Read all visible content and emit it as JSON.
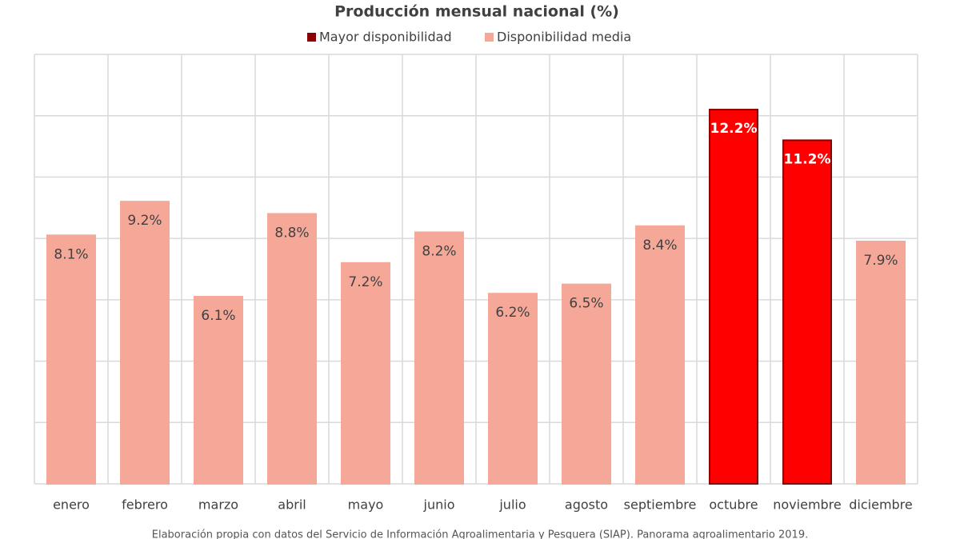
{
  "chart_data": {
    "type": "bar",
    "title": "Producción mensual nacional (%)",
    "categories": [
      "enero",
      "febrero",
      "marzo",
      "abril",
      "mayo",
      "junio",
      "julio",
      "agosto",
      "septiembre",
      "octubre",
      "noviembre",
      "diciembre"
    ],
    "series": [
      {
        "name": "Mayor disponibilidad",
        "color": "#ff0000",
        "edgecolor": "#8b0000",
        "values": [
          null,
          null,
          null,
          null,
          null,
          null,
          null,
          null,
          null,
          12.2,
          11.2,
          null
        ],
        "value_labels": [
          null,
          null,
          null,
          null,
          null,
          null,
          null,
          null,
          null,
          "12.2%",
          "11.2%",
          null
        ]
      },
      {
        "name": "Disponibilidad media",
        "color": "#f6a898",
        "edgecolor": "#f6a898",
        "values": [
          8.1,
          9.2,
          6.1,
          8.8,
          7.2,
          8.2,
          6.2,
          6.5,
          8.4,
          null,
          null,
          7.9
        ],
        "value_labels": [
          "8.1%",
          "9.2%",
          "6.1%",
          "8.8%",
          "7.2%",
          "8.2%",
          "6.2%",
          "6.5%",
          "8.4%",
          null,
          null,
          "7.9%"
        ]
      }
    ],
    "ylim": [
      0,
      14
    ],
    "yticks": [
      0,
      2,
      4,
      6,
      8,
      10,
      12,
      14
    ],
    "grid": true,
    "legend": "top",
    "source": "Elaboración propia con datos del Servicio de Información Agroalimentaria y Pesquera (SIAP). Panorama agroalimentario 2019."
  }
}
